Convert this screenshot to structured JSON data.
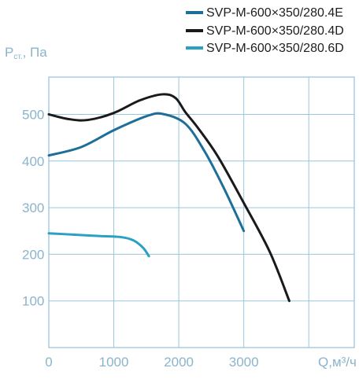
{
  "chart_data": {
    "type": "line",
    "ylabel": "Р",
    "ylabel_sub": "ст.",
    "ylabel_unit": ", Па",
    "xlabel": "Q,м³/ч",
    "xlim": [
      0,
      4700
    ],
    "ylim": [
      0,
      580
    ],
    "x_ticks": [
      "0",
      "1000",
      "2000",
      "3000"
    ],
    "y_ticks": [
      "100",
      "200",
      "300",
      "400",
      "500"
    ],
    "grid": true,
    "legend_position": "top-right",
    "series": [
      {
        "name": "SVP-M-600×350/280.4E",
        "color": "#1d6f9a",
        "points": [
          [
            0,
            412
          ],
          [
            500,
            430
          ],
          [
            1000,
            466
          ],
          [
            1500,
            496
          ],
          [
            1750,
            501
          ],
          [
            2100,
            480
          ],
          [
            2400,
            420
          ],
          [
            2700,
            340
          ],
          [
            3000,
            250
          ]
        ]
      },
      {
        "name": "SVP-M-600×350/280.4D",
        "color": "#1a1a1a",
        "points": [
          [
            0,
            500
          ],
          [
            300,
            490
          ],
          [
            600,
            488
          ],
          [
            1000,
            503
          ],
          [
            1400,
            530
          ],
          [
            1750,
            543
          ],
          [
            1950,
            535
          ],
          [
            2100,
            505
          ],
          [
            2300,
            470
          ],
          [
            2600,
            410
          ],
          [
            3000,
            310
          ],
          [
            3400,
            205
          ],
          [
            3700,
            100
          ]
        ]
      },
      {
        "name": "SVP-M-600×350/280.6D",
        "color": "#2aa1c3",
        "points": [
          [
            0,
            245
          ],
          [
            400,
            242
          ],
          [
            800,
            239
          ],
          [
            1100,
            237
          ],
          [
            1300,
            230
          ],
          [
            1450,
            214
          ],
          [
            1540,
            196
          ]
        ]
      }
    ]
  }
}
